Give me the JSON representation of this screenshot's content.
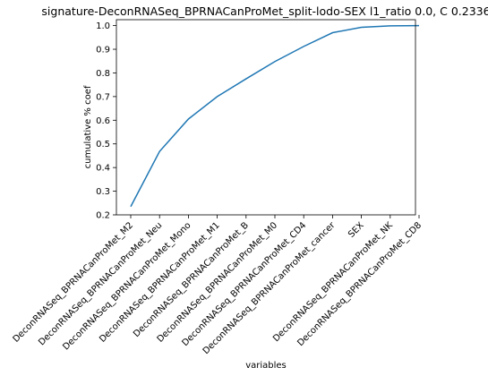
{
  "chart_data": {
    "type": "line",
    "title": "signature-DeconRNASeq_BPRNACanProMet_split-lodo-SEX l1_ratio 0.0, C 0.2336",
    "xlabel": "variables",
    "ylabel": "cumulative % coef",
    "categories": [
      "DeconRNASeq_BPRNACanProMet_M2",
      "DeconRNASeq_BPRNACanProMet_Neu",
      "DeconRNASeq_BPRNACanProMet_Mono",
      "DeconRNASeq_BPRNACanProMet_M1",
      "DeconRNASeq_BPRNACanProMet_B",
      "DeconRNASeq_BPRNACanProMet_M0",
      "DeconRNASeq_BPRNACanProMet_CD4",
      "DeconRNASeq_BPRNACanProMet_cancer",
      "SEX",
      "DeconRNASeq_BPRNACanProMet_NK",
      "DeconRNASeq_BPRNACanProMet_CD8"
    ],
    "values": [
      0.235,
      0.468,
      0.605,
      0.7,
      0.775,
      0.848,
      0.912,
      0.97,
      0.993,
      0.999,
      1.0
    ],
    "ylim": [
      0.2,
      1.025
    ],
    "yticks": [
      "0.2",
      "0.3",
      "0.4",
      "0.5",
      "0.6",
      "0.7",
      "0.8",
      "0.9",
      "1.0"
    ],
    "grid": false,
    "line_color": "#1f77b4"
  }
}
